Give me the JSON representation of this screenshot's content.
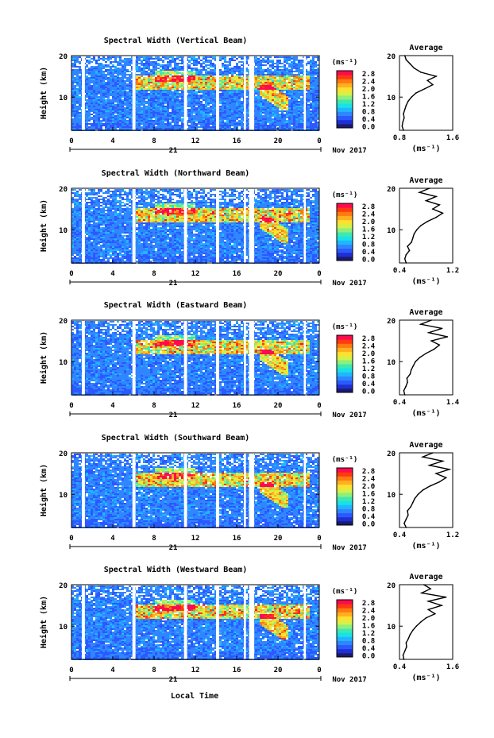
{
  "colors": {
    "colorbar": [
      "#1a1a6e",
      "#1f2fd1",
      "#2b59ff",
      "#2f86ff",
      "#1fb7ff",
      "#19e2e6",
      "#3fe8b0",
      "#8ef07a",
      "#d8f046",
      "#ffe030",
      "#ffb020",
      "#ff7a10",
      "#ff3a10",
      "#ff0a50"
    ],
    "line": "#000000",
    "gap": "#ffffff"
  },
  "footer": {
    "xlabel": "Local Time"
  },
  "chart_data": [
    {
      "type": "heatmap",
      "title": "Spectral Width (Vertical Beam)",
      "ylabel": "Height (km)",
      "xlim": [
        0,
        24
      ],
      "ylim": [
        2,
        20
      ],
      "xticks": [
        "0",
        "4",
        "8",
        "12",
        "16",
        "20",
        "0"
      ],
      "yticks": [
        "20",
        "10"
      ],
      "date_axis": {
        "day": "21",
        "month_year": "Nov 2017"
      },
      "colorbar": {
        "unit": "(ms⁻¹)",
        "ticks": [
          "2.8",
          "2.4",
          "2.0",
          "1.6",
          "1.2",
          "0.8",
          "0.4",
          "0.0"
        ],
        "range": [
          0,
          2.8
        ]
      },
      "data_gaps_hours": [
        [
          1.0,
          1.3
        ],
        [
          5.9,
          6.2
        ],
        [
          10.9,
          11.2
        ],
        [
          14.0,
          14.3
        ],
        [
          16.7,
          16.9
        ],
        [
          17.2,
          17.7
        ],
        [
          22.5,
          22.7
        ]
      ],
      "profile": {
        "title": "Average",
        "xlabel": "(ms⁻¹)",
        "xlim": [
          0.8,
          1.6
        ],
        "xticks": [
          "0.8",
          "1.6"
        ],
        "yticks": [
          "20",
          "10"
        ],
        "height_km": [
          2,
          3,
          4,
          5,
          6,
          7,
          8,
          9,
          10,
          11,
          12,
          13,
          14,
          15,
          16,
          17,
          18,
          19,
          20
        ],
        "width_ms": [
          0.86,
          0.84,
          0.85,
          0.87,
          0.86,
          0.88,
          0.9,
          0.93,
          0.98,
          1.05,
          1.18,
          1.3,
          1.22,
          1.35,
          1.12,
          1.02,
          0.96,
          0.9,
          0.88
        ]
      }
    },
    {
      "type": "heatmap",
      "title": "Spectral Width (Northward Beam)",
      "ylabel": "Height (km)",
      "xlim": [
        0,
        24
      ],
      "ylim": [
        2,
        20
      ],
      "xticks": [
        "0",
        "4",
        "8",
        "12",
        "16",
        "20",
        "0"
      ],
      "yticks": [
        "20",
        "10"
      ],
      "date_axis": {
        "day": "21",
        "month_year": "Nov 2017"
      },
      "colorbar": {
        "unit": "(ms⁻¹)",
        "ticks": [
          "2.8",
          "2.4",
          "2.0",
          "1.6",
          "1.2",
          "0.8",
          "0.4",
          "0.0"
        ],
        "range": [
          0,
          2.8
        ]
      },
      "data_gaps_hours": [
        [
          1.0,
          1.3
        ],
        [
          5.9,
          6.2
        ],
        [
          10.9,
          11.2
        ],
        [
          14.0,
          14.3
        ],
        [
          16.7,
          16.9
        ],
        [
          17.2,
          17.7
        ],
        [
          22.5,
          22.7
        ]
      ],
      "profile": {
        "title": "Average",
        "xlabel": "(ms⁻¹)",
        "xlim": [
          0.4,
          1.2
        ],
        "xticks": [
          "0.4",
          "1.2"
        ],
        "yticks": [
          "20",
          "10"
        ],
        "height_km": [
          2,
          3,
          4,
          5,
          6,
          7,
          8,
          9,
          10,
          11,
          12,
          13,
          14,
          15,
          16,
          17,
          18,
          19,
          20
        ],
        "width_ms": [
          0.5,
          0.48,
          0.5,
          0.55,
          0.52,
          0.58,
          0.6,
          0.62,
          0.66,
          0.72,
          0.82,
          0.95,
          1.05,
          0.9,
          1.0,
          0.8,
          0.95,
          0.7,
          0.85
        ]
      }
    },
    {
      "type": "heatmap",
      "title": "Spectral Width (Eastward Beam)",
      "ylabel": "Height (km)",
      "xlim": [
        0,
        24
      ],
      "ylim": [
        2,
        20
      ],
      "xticks": [
        "0",
        "4",
        "8",
        "12",
        "16",
        "20",
        "0"
      ],
      "yticks": [
        "20",
        "10"
      ],
      "date_axis": {
        "day": "21",
        "month_year": "Nov 2017"
      },
      "colorbar": {
        "unit": "(ms⁻¹)",
        "ticks": [
          "2.8",
          "2.4",
          "2.0",
          "1.6",
          "1.2",
          "0.8",
          "0.4",
          "0.0"
        ],
        "range": [
          0,
          2.8
        ]
      },
      "data_gaps_hours": [
        [
          1.0,
          1.3
        ],
        [
          5.9,
          6.2
        ],
        [
          10.9,
          11.2
        ],
        [
          14.0,
          14.3
        ],
        [
          16.7,
          16.9
        ],
        [
          17.2,
          17.7
        ],
        [
          22.5,
          22.7
        ]
      ],
      "profile": {
        "title": "Average",
        "xlabel": "(ms⁻¹)",
        "xlim": [
          0.4,
          1.4
        ],
        "xticks": [
          "0.4",
          "1.4"
        ],
        "yticks": [
          "20",
          "10"
        ],
        "height_km": [
          2,
          3,
          4,
          5,
          6,
          7,
          8,
          9,
          10,
          11,
          12,
          13,
          14,
          15,
          16,
          17,
          18,
          19,
          20
        ],
        "width_ms": [
          0.5,
          0.48,
          0.52,
          0.55,
          0.54,
          0.6,
          0.62,
          0.66,
          0.7,
          0.78,
          0.9,
          1.05,
          1.15,
          1.0,
          1.3,
          0.95,
          1.2,
          0.8,
          1.0
        ]
      }
    },
    {
      "type": "heatmap",
      "title": "Spectral Width (Southward Beam)",
      "ylabel": "Height (km)",
      "xlim": [
        0,
        24
      ],
      "ylim": [
        2,
        20
      ],
      "xticks": [
        "0",
        "4",
        "8",
        "12",
        "16",
        "20",
        "0"
      ],
      "yticks": [
        "20",
        "10"
      ],
      "date_axis": {
        "day": "21",
        "month_year": "Nov 2017"
      },
      "colorbar": {
        "unit": "(ms⁻¹)",
        "ticks": [
          "2.8",
          "2.4",
          "2.0",
          "1.6",
          "1.2",
          "0.8",
          "0.4",
          "0.0"
        ],
        "range": [
          0,
          2.8
        ]
      },
      "data_gaps_hours": [
        [
          1.0,
          1.3
        ],
        [
          5.9,
          6.2
        ],
        [
          10.9,
          11.2
        ],
        [
          14.0,
          14.3
        ],
        [
          16.7,
          16.9
        ],
        [
          17.2,
          17.7
        ],
        [
          22.5,
          22.7
        ]
      ],
      "profile": {
        "title": "Average",
        "xlabel": "(ms⁻¹)",
        "xlim": [
          0.4,
          1.2
        ],
        "xticks": [
          "0.4",
          "1.2"
        ],
        "yticks": [
          "20",
          "10"
        ],
        "height_km": [
          2,
          3,
          4,
          5,
          6,
          7,
          8,
          9,
          10,
          11,
          12,
          13,
          14,
          15,
          16,
          17,
          18,
          19,
          20
        ],
        "width_ms": [
          0.5,
          0.47,
          0.5,
          0.53,
          0.52,
          0.57,
          0.6,
          0.63,
          0.68,
          0.75,
          0.86,
          1.0,
          1.1,
          0.95,
          1.15,
          0.85,
          1.05,
          0.75,
          0.9
        ]
      }
    },
    {
      "type": "heatmap",
      "title": "Spectral Width (Westward Beam)",
      "ylabel": "Height (km)",
      "xlim": [
        0,
        24
      ],
      "ylim": [
        2,
        20
      ],
      "xticks": [
        "0",
        "4",
        "8",
        "12",
        "16",
        "20",
        "0"
      ],
      "yticks": [
        "20",
        "10"
      ],
      "date_axis": {
        "day": "21",
        "month_year": "Nov 2017"
      },
      "colorbar": {
        "unit": "(ms⁻¹)",
        "ticks": [
          "2.8",
          "2.4",
          "2.0",
          "1.6",
          "1.2",
          "0.8",
          "0.4",
          "0.0"
        ],
        "range": [
          0,
          2.8
        ]
      },
      "data_gaps_hours": [
        [
          1.0,
          1.3
        ],
        [
          5.9,
          6.2
        ],
        [
          10.9,
          11.2
        ],
        [
          14.0,
          14.3
        ],
        [
          16.7,
          16.9
        ],
        [
          17.2,
          17.7
        ],
        [
          22.5,
          22.7
        ]
      ],
      "profile": {
        "title": "Average",
        "xlabel": "(ms⁻¹)",
        "xlim": [
          0.4,
          1.6
        ],
        "xticks": [
          "0.4",
          "1.6"
        ],
        "yticks": [
          "20",
          "10"
        ],
        "height_km": [
          2,
          3,
          4,
          5,
          6,
          7,
          8,
          9,
          10,
          11,
          12,
          13,
          14,
          15,
          16,
          17,
          18,
          19,
          20
        ],
        "width_ms": [
          0.5,
          0.48,
          0.52,
          0.56,
          0.55,
          0.6,
          0.64,
          0.7,
          0.78,
          0.88,
          1.0,
          1.2,
          1.05,
          1.35,
          1.05,
          1.45,
          0.9,
          1.1,
          0.95
        ]
      }
    }
  ]
}
